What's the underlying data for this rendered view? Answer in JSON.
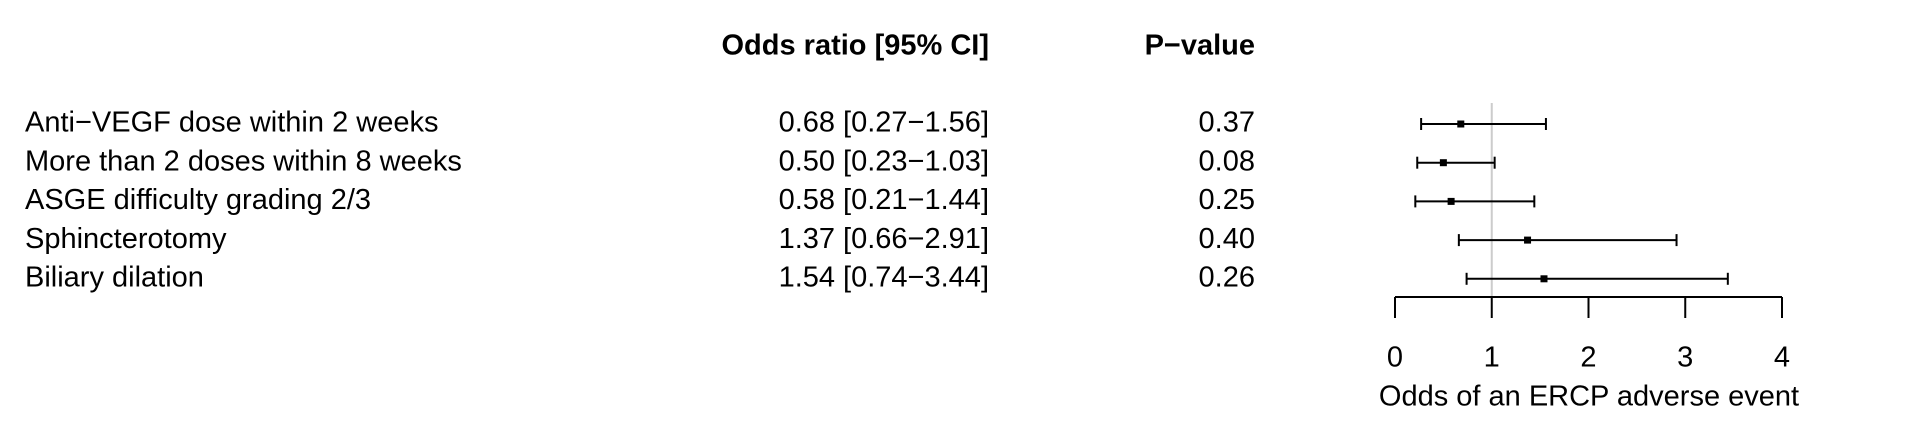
{
  "chart_data": {
    "type": "forest",
    "columns": [
      "Odds ratio [95% CI]",
      "P−value"
    ],
    "categories": [
      "Anti−VEGF dose within 2 weeks",
      "More than 2 doses within 8 weeks",
      "ASGE difficulty grading 2/3",
      "Sphincterotomy",
      "Biliary dilation"
    ],
    "values": [
      0.68,
      0.5,
      0.58,
      1.37,
      1.54
    ],
    "lower": [
      0.27,
      0.23,
      0.21,
      0.66,
      0.74
    ],
    "upper": [
      1.56,
      1.03,
      1.44,
      2.91,
      3.44
    ],
    "value_labels": [
      "0.68 [0.27−1.56]",
      "0.50 [0.23−1.03]",
      "0.58 [0.21−1.44]",
      "1.37 [0.66−2.91]",
      "1.54 [0.74−3.44]"
    ],
    "p_values": [
      {
        "value": 0.37,
        "label": "0.37"
      },
      {
        "value": 0.08,
        "label": "0.08"
      },
      {
        "value": 0.25,
        "label": "0.25"
      },
      {
        "value": 0.4,
        "label": "0.40"
      },
      {
        "value": 0.26,
        "label": "0.26"
      }
    ],
    "xlabel": "Odds of an ERCP adverse event",
    "xlim": [
      0,
      4
    ],
    "xticks": [
      0,
      1,
      2,
      3,
      4
    ],
    "reference_line": 1,
    "color": "#000000"
  }
}
